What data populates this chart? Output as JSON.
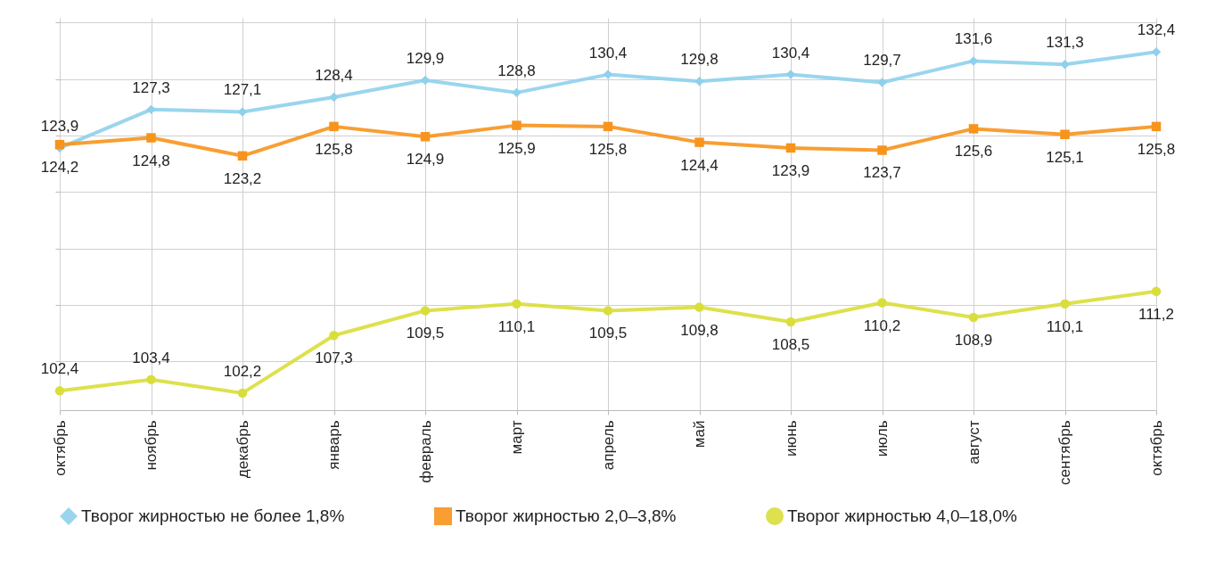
{
  "chart_data": {
    "type": "line",
    "categories": [
      "октябрь",
      "ноябрь",
      "декабрь",
      "январь",
      "февраль",
      "март",
      "апрель",
      "май",
      "июнь",
      "июль",
      "август",
      "сентябрь",
      "октябрь"
    ],
    "series": [
      {
        "name": "Творог жирностью не более 1,8%",
        "color": "#8fd0ec",
        "marker": "diamond",
        "values": [
          123.9,
          127.3,
          127.1,
          128.4,
          129.9,
          128.8,
          130.4,
          129.8,
          130.4,
          129.7,
          131.6,
          131.3,
          132.4
        ],
        "value_labels": [
          "123,9",
          "127,3",
          "127,1",
          "128,4",
          "129,9",
          "128,8",
          "130,4",
          "129,8",
          "130,4",
          "129,7",
          "131,6",
          "131,3",
          "132,4"
        ]
      },
      {
        "name": "Творог жирностью 2,0–3,8%",
        "color": "#f7941d",
        "marker": "square",
        "values": [
          124.2,
          124.8,
          123.2,
          125.8,
          124.9,
          125.9,
          125.8,
          124.4,
          123.9,
          123.7,
          125.6,
          125.1,
          125.8
        ],
        "value_labels": [
          "124,2",
          "124,8",
          "123,2",
          "125,8",
          "124,9",
          "125,9",
          "125,8",
          "124,4",
          "123,9",
          "123,7",
          "125,6",
          "125,1",
          "125,8"
        ]
      },
      {
        "name": "Творог жирностью 4,0–18,0%",
        "color": "#d9de3a",
        "marker": "circle",
        "values": [
          102.4,
          103.4,
          102.2,
          107.3,
          109.5,
          110.1,
          109.5,
          109.8,
          108.5,
          110.2,
          108.9,
          110.1,
          111.2
        ],
        "value_labels": [
          "102,4",
          "103,4",
          "102,2",
          "107,3",
          "109,5",
          "110,1",
          "109,5",
          "109,8",
          "108,5",
          "110,2",
          "108,9",
          "110,1",
          "111,2"
        ]
      }
    ],
    "grid": true,
    "legend": "bottom",
    "tick_labels": "x",
    "line_style": "solid"
  }
}
